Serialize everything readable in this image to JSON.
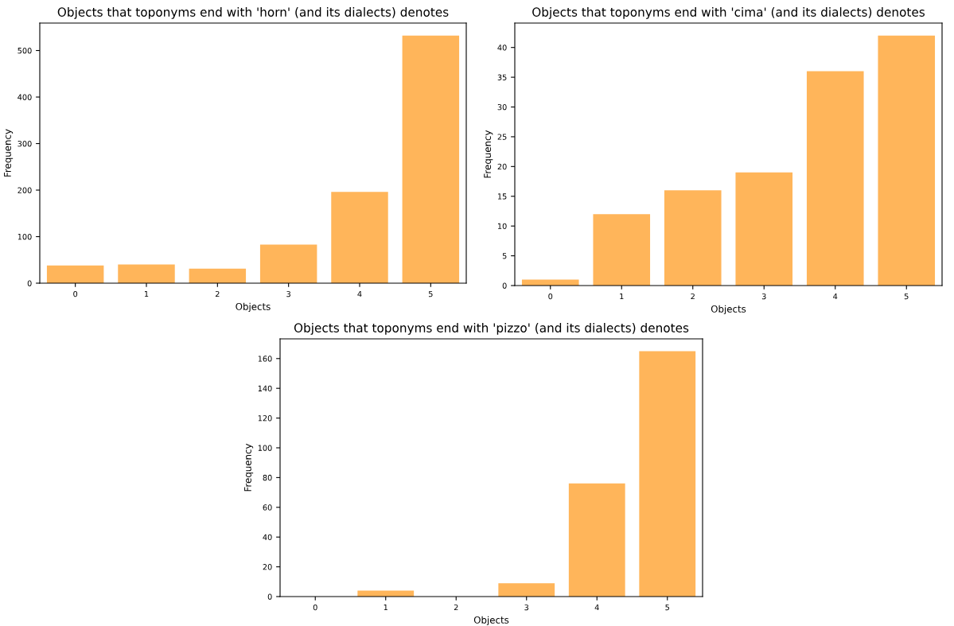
{
  "chart_data": [
    {
      "type": "bar",
      "title": "Objects that toponyms end with 'horn' (and its dialects) denotes",
      "xlabel": "Objects",
      "ylabel": "Frequency",
      "categories": [
        "0",
        "1",
        "2",
        "3",
        "4",
        "5"
      ],
      "values": [
        38,
        40,
        31,
        83,
        196,
        532
      ],
      "color": "#ffb55a",
      "ylim": [
        0,
        559
      ],
      "yticks": [
        0,
        100,
        200,
        300,
        400,
        500
      ]
    },
    {
      "type": "bar",
      "title": "Objects that toponyms end with 'cima' (and its dialects) denotes",
      "xlabel": "Objects",
      "ylabel": "Frequency",
      "categories": [
        "0",
        "1",
        "2",
        "3",
        "4",
        "5"
      ],
      "values": [
        1,
        12,
        16,
        19,
        36,
        42
      ],
      "color": "#ffb55a",
      "ylim": [
        0,
        44.1
      ],
      "yticks": [
        0,
        5,
        10,
        15,
        20,
        25,
        30,
        35,
        40
      ]
    },
    {
      "type": "bar",
      "title": "Objects that toponyms end with 'pizzo' (and its dialects) denotes",
      "xlabel": "Objects",
      "ylabel": "Frequency",
      "categories": [
        "0",
        "1",
        "2",
        "3",
        "4",
        "5"
      ],
      "values": [
        0,
        4,
        0,
        9,
        76,
        165
      ],
      "color": "#ffb55a",
      "ylim": [
        0,
        173.25
      ],
      "yticks": [
        0,
        20,
        40,
        60,
        80,
        100,
        120,
        140,
        160
      ]
    }
  ]
}
